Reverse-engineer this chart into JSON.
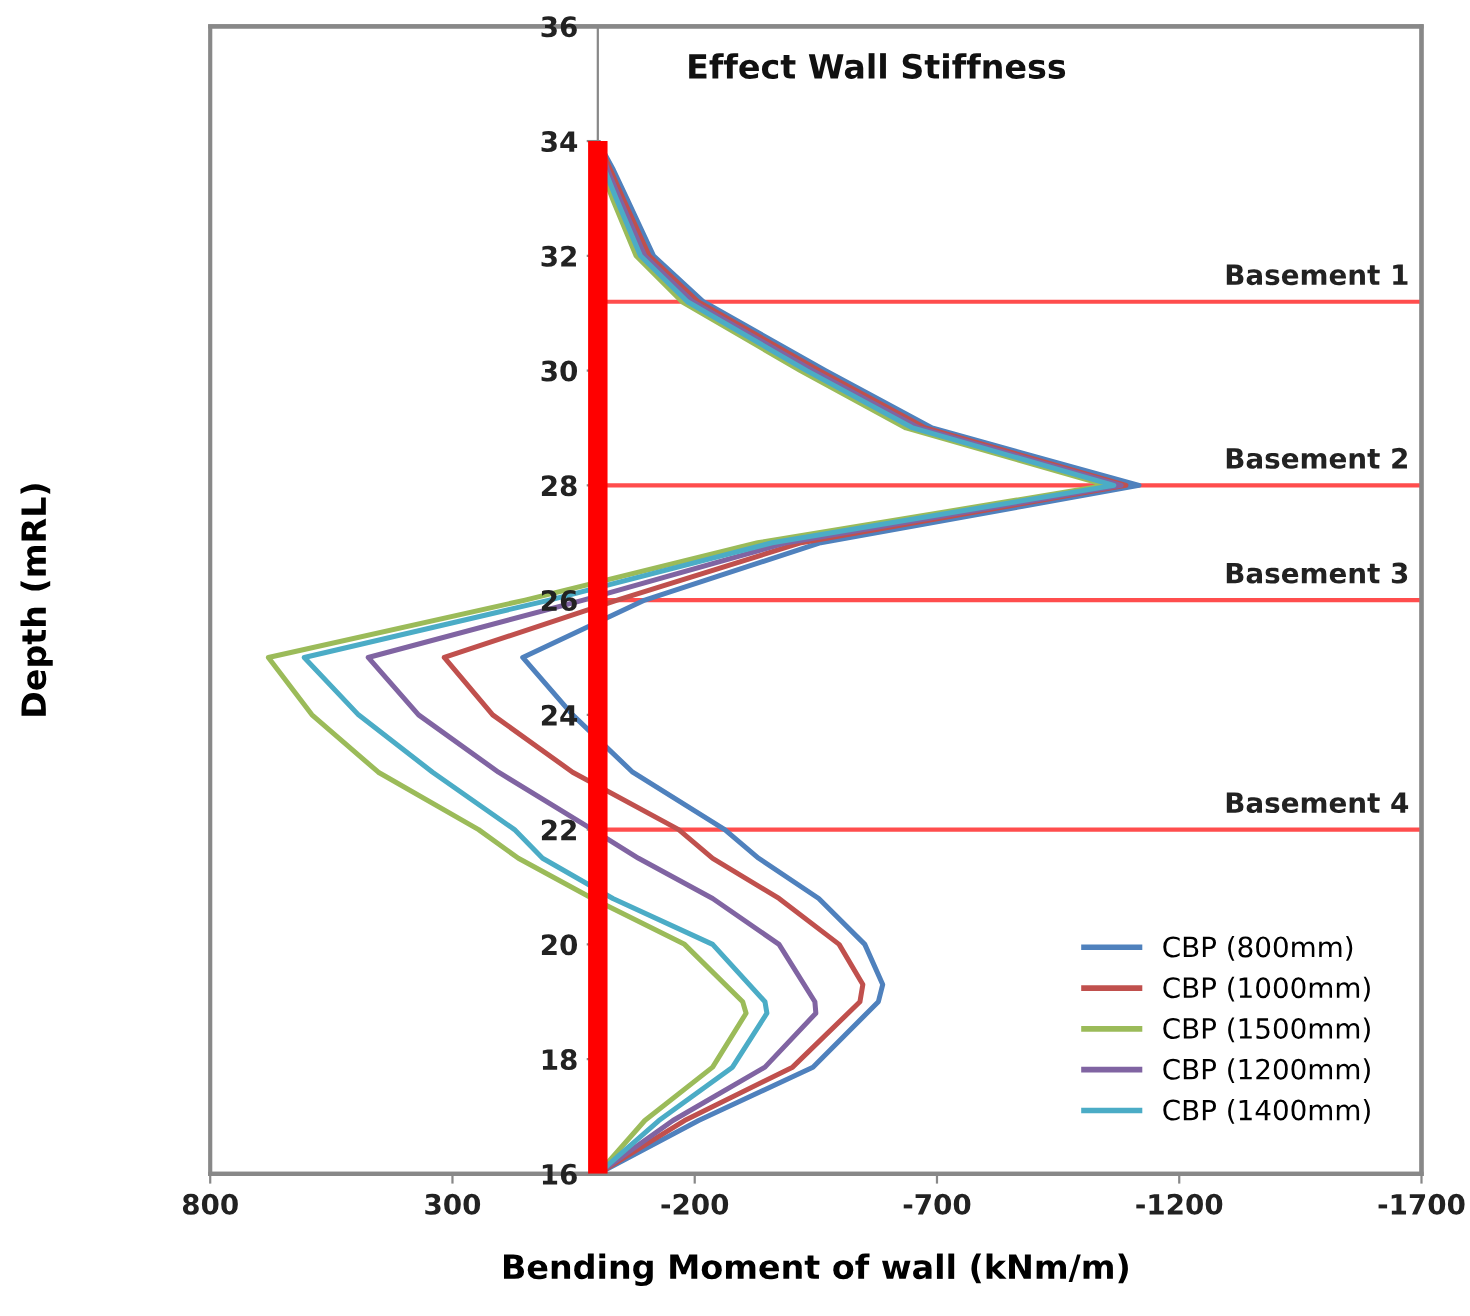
{
  "chart_data": {
    "type": "line",
    "title": "Effect Wall Stiffness",
    "xlabel": "Bending Moment of wall (kNm/m)",
    "ylabel": "Depth (mRL)",
    "xlim": [
      800,
      -1700
    ],
    "xticks": [
      800,
      300,
      -200,
      -700,
      -1200,
      -1700
    ],
    "ylim": [
      16,
      36
    ],
    "yticks": [
      16,
      18,
      20,
      22,
      24,
      26,
      28,
      30,
      32,
      34,
      36
    ],
    "grid": false,
    "legend": "bottom right",
    "marker": "none",
    "line_style": "solid",
    "series": [
      {
        "name": "CBP (800mm)",
        "color": "#4f81bd",
        "x": [
          0,
          -32,
          -60,
          -115,
          -218,
          -470,
          -690,
          -1117,
          -460,
          -97,
          155,
          52,
          -72,
          -262,
          -332,
          -456,
          -551,
          -588,
          -579,
          -444,
          -208,
          0
        ],
        "values": [
          34,
          33.5,
          33,
          32,
          31.2,
          30,
          29,
          28,
          27,
          26,
          25,
          24,
          23,
          22,
          21.5,
          20.8,
          20,
          19.3,
          19,
          17.86,
          16.93,
          16
        ]
      },
      {
        "name": "CBP (1000mm)",
        "color": "#c0504d",
        "x": [
          0,
          -26,
          -52,
          -106,
          -207,
          -457,
          -676,
          -1090,
          -420,
          -40,
          317,
          217,
          52,
          -167,
          -237,
          -374,
          -498,
          -547,
          -541,
          -402,
          -179,
          0
        ],
        "values": [
          34,
          33.5,
          33,
          32,
          31.2,
          30,
          29,
          28,
          27,
          26,
          25,
          24,
          23,
          22,
          21.5,
          20.8,
          20,
          19.3,
          19,
          17.86,
          16.93,
          16
        ]
      },
      {
        "name": "CBP (1500mm)",
        "color": "#9bbb59",
        "x": [
          0,
          -8,
          -30,
          -79,
          -174,
          -418,
          -636,
          -1050,
          -330,
          150,
          680,
          590,
          453,
          246,
          164,
          11,
          -179,
          -299,
          -306,
          -237,
          -97,
          0
        ],
        "values": [
          34,
          33.5,
          33,
          32,
          31.2,
          30,
          29,
          28,
          27,
          26,
          25,
          24,
          23,
          22,
          21.5,
          20.8,
          20,
          19,
          18.8,
          17.86,
          16.93,
          16
        ]
      },
      {
        "name": "CBP (1200mm)",
        "color": "#8064a2",
        "x": [
          0,
          -20,
          -45,
          -97,
          -196,
          -444,
          -663,
          -1080,
          -390,
          30,
          474,
          370,
          205,
          11,
          -84,
          -237,
          -374,
          -448,
          -450,
          -345,
          -155,
          0
        ],
        "values": [
          34,
          33.5,
          33,
          32,
          31.2,
          30,
          29,
          28,
          27,
          26,
          25,
          24,
          23,
          22,
          21.5,
          20.8,
          20,
          19,
          18.8,
          17.86,
          16.93,
          16
        ]
      },
      {
        "name": "CBP (1400mm)",
        "color": "#4bacc6",
        "x": [
          0,
          -14,
          -38,
          -88,
          -185,
          -431,
          -650,
          -1065,
          -360,
          100,
          606,
          494,
          341,
          172,
          114,
          -31,
          -237,
          -345,
          -349,
          -278,
          -126,
          0
        ],
        "values": [
          34,
          33.5,
          33,
          32,
          31.2,
          30,
          29,
          28,
          27,
          26,
          25,
          24,
          23,
          22,
          21.5,
          20.8,
          20,
          19,
          18.8,
          17.86,
          16.93,
          16
        ]
      },
      {
        "color": "#ff0000",
        "x": [
          0,
          0
        ],
        "values": [
          16,
          34
        ]
      }
    ],
    "ref_lines": [
      {
        "axis": "y",
        "value": 31.2,
        "label": "Basement 1",
        "color": "#ff4d4d"
      },
      {
        "axis": "y",
        "value": 28,
        "label": "Basement 2",
        "color": "#ff4d4d"
      },
      {
        "axis": "y",
        "value": 26,
        "label": "Basement 3",
        "color": "#ff4d4d"
      },
      {
        "axis": "y",
        "value": 22,
        "label": "Basement 4",
        "color": "#ff4d4d"
      }
    ]
  }
}
